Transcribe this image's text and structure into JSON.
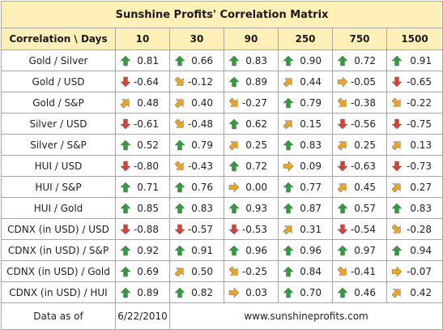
{
  "title": "Sunshine Profits' Correlation Matrix",
  "header": {
    "corner": "Correlation \\ Days",
    "days": [
      "10",
      "30",
      "90",
      "250",
      "750",
      "1500"
    ]
  },
  "rows": [
    {
      "label": "Gold / Silver",
      "cells": [
        {
          "arrow": "up",
          "value": "0.81"
        },
        {
          "arrow": "up",
          "value": "0.66"
        },
        {
          "arrow": "up",
          "value": "0.83"
        },
        {
          "arrow": "up",
          "value": "0.90"
        },
        {
          "arrow": "up",
          "value": "0.72"
        },
        {
          "arrow": "up",
          "value": "0.91"
        }
      ]
    },
    {
      "label": "Gold / USD",
      "cells": [
        {
          "arrow": "down",
          "value": "-0.64"
        },
        {
          "arrow": "down-right",
          "value": "-0.12"
        },
        {
          "arrow": "up",
          "value": "0.89"
        },
        {
          "arrow": "up-right",
          "value": "0.44"
        },
        {
          "arrow": "right",
          "value": "-0.05"
        },
        {
          "arrow": "down",
          "value": "-0.65"
        }
      ]
    },
    {
      "label": "Gold / S&P",
      "cells": [
        {
          "arrow": "up-right",
          "value": "0.48"
        },
        {
          "arrow": "up-right",
          "value": "0.40"
        },
        {
          "arrow": "down-right",
          "value": "-0.27"
        },
        {
          "arrow": "up",
          "value": "0.79"
        },
        {
          "arrow": "down-right",
          "value": "-0.38"
        },
        {
          "arrow": "down-right",
          "value": "-0.22"
        }
      ]
    },
    {
      "label": "Silver / USD",
      "cells": [
        {
          "arrow": "down",
          "value": "-0.61"
        },
        {
          "arrow": "down-right",
          "value": "-0.48"
        },
        {
          "arrow": "up",
          "value": "0.62"
        },
        {
          "arrow": "up-right",
          "value": "0.15"
        },
        {
          "arrow": "down",
          "value": "-0.56"
        },
        {
          "arrow": "down",
          "value": "-0.75"
        }
      ]
    },
    {
      "label": "Silver / S&P",
      "cells": [
        {
          "arrow": "up",
          "value": "0.52"
        },
        {
          "arrow": "up",
          "value": "0.79"
        },
        {
          "arrow": "up-right",
          "value": "0.25"
        },
        {
          "arrow": "up",
          "value": "0.83"
        },
        {
          "arrow": "up-right",
          "value": "0.25"
        },
        {
          "arrow": "up-right",
          "value": "0.13"
        }
      ]
    },
    {
      "label": "HUI / USD",
      "cells": [
        {
          "arrow": "down",
          "value": "-0.80"
        },
        {
          "arrow": "down-right",
          "value": "-0.43"
        },
        {
          "arrow": "up",
          "value": "0.72"
        },
        {
          "arrow": "right",
          "value": "0.09"
        },
        {
          "arrow": "down",
          "value": "-0.63"
        },
        {
          "arrow": "down",
          "value": "-0.73"
        }
      ]
    },
    {
      "label": "HUI / S&P",
      "cells": [
        {
          "arrow": "up",
          "value": "0.71"
        },
        {
          "arrow": "up",
          "value": "0.76"
        },
        {
          "arrow": "right",
          "value": "0.00"
        },
        {
          "arrow": "up",
          "value": "0.77"
        },
        {
          "arrow": "up-right",
          "value": "0.45"
        },
        {
          "arrow": "up-right",
          "value": "0.27"
        }
      ]
    },
    {
      "label": "HUI / Gold",
      "cells": [
        {
          "arrow": "up",
          "value": "0.85"
        },
        {
          "arrow": "up",
          "value": "0.83"
        },
        {
          "arrow": "up",
          "value": "0.93"
        },
        {
          "arrow": "up",
          "value": "0.87"
        },
        {
          "arrow": "up",
          "value": "0.57"
        },
        {
          "arrow": "up",
          "value": "0.83"
        }
      ]
    },
    {
      "label": "CDNX (in USD) / USD",
      "cells": [
        {
          "arrow": "down",
          "value": "-0.88"
        },
        {
          "arrow": "down",
          "value": "-0.57"
        },
        {
          "arrow": "down",
          "value": "-0.53"
        },
        {
          "arrow": "up-right",
          "value": "0.31"
        },
        {
          "arrow": "down",
          "value": "-0.54"
        },
        {
          "arrow": "down-right",
          "value": "-0.28"
        }
      ]
    },
    {
      "label": "CDNX (in USD) / S&P",
      "cells": [
        {
          "arrow": "up",
          "value": "0.92"
        },
        {
          "arrow": "up",
          "value": "0.91"
        },
        {
          "arrow": "up",
          "value": "0.96"
        },
        {
          "arrow": "up",
          "value": "0.96"
        },
        {
          "arrow": "up",
          "value": "0.97"
        },
        {
          "arrow": "up",
          "value": "0.94"
        }
      ]
    },
    {
      "label": "CDNX (in USD) / Gold",
      "cells": [
        {
          "arrow": "up",
          "value": "0.69"
        },
        {
          "arrow": "up-right",
          "value": "0.50"
        },
        {
          "arrow": "down-right",
          "value": "-0.25"
        },
        {
          "arrow": "up",
          "value": "0.84"
        },
        {
          "arrow": "down-right",
          "value": "-0.41"
        },
        {
          "arrow": "right",
          "value": "-0.07"
        }
      ]
    },
    {
      "label": "CDNX (in USD) / HUI",
      "cells": [
        {
          "arrow": "up",
          "value": "0.89"
        },
        {
          "arrow": "up",
          "value": "0.82"
        },
        {
          "arrow": "right",
          "value": "0.03"
        },
        {
          "arrow": "up",
          "value": "0.70"
        },
        {
          "arrow": "up",
          "value": "0.46"
        },
        {
          "arrow": "up-right",
          "value": "0.42"
        }
      ]
    }
  ],
  "footer": {
    "label": "Data as of",
    "date": "6/22/2010",
    "url": "www.sunshineprofits.com"
  },
  "arrow_colors": {
    "up": "#2e9e3a",
    "down": "#e03c31",
    "diagonal": "#f0a417",
    "right": "#f0a417"
  }
}
